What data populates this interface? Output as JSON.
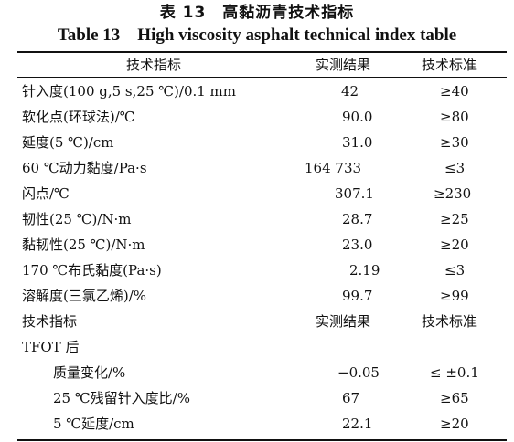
{
  "caption": {
    "cn": "表 13　高黏沥青技术指标",
    "en": "Table 13　High viscosity asphalt technical index table"
  },
  "header": {
    "name": "技术指标",
    "measured": "实测结果",
    "standard": "技术标准"
  },
  "rows": [
    {
      "name": "针入度(100 g,5 s,25 ℃)/0.1 mm",
      "measured": "42",
      "standard": "≥40"
    },
    {
      "name": "软化点(环球法)/℃",
      "measured": "90.0",
      "standard": "≥80"
    },
    {
      "name": "延度(5 ℃)/cm",
      "measured": "31.0",
      "standard": "≥30"
    },
    {
      "name": "60 ℃动力黏度/Pa·s",
      "measured": "164 733",
      "standard": "≤3"
    },
    {
      "name": "闪点/℃",
      "measured": "307.1",
      "standard": "≥230"
    },
    {
      "name": "韧性(25 ℃)/N·m",
      "measured": "28.7",
      "standard": "≥25"
    },
    {
      "name": "黏韧性(25 ℃)/N·m",
      "measured": "23.0",
      "standard": "≥20"
    },
    {
      "name": "170 ℃布氏黏度(Pa·s)",
      "measured": "2.19",
      "standard": "≤3"
    },
    {
      "name": "溶解度(三氯乙烯)/%",
      "measured": "99.7",
      "standard": "≥99"
    }
  ],
  "header2": {
    "name": "技术指标",
    "measured": "实测结果",
    "standard": "技术标准"
  },
  "section": "TFOT 后",
  "tfot_rows": [
    {
      "name": "质量变化/%",
      "measured": "−0.05",
      "standard": "≤ ±0.1"
    },
    {
      "name": "25 ℃残留针入度比/%",
      "measured": "67",
      "standard": "≥65"
    },
    {
      "name": "5 ℃延度/cm",
      "measured": "22.1",
      "standard": "≥20"
    }
  ]
}
